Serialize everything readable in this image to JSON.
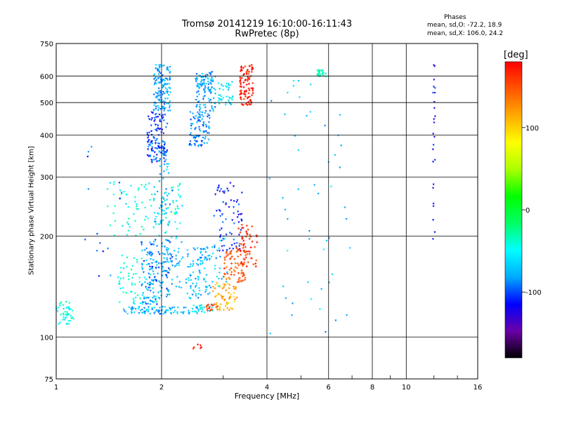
{
  "chart_data": {
    "type": "scatter",
    "title": "Tromsø 20141219 16:10:00-16:11:43",
    "subtitle": "RwPretec (8p)",
    "xlabel": "Frequency [MHz]",
    "ylabel": "Stationary phase Virtual Height [km]",
    "x_scale": "log",
    "y_scale": "log",
    "xlim": [
      1,
      16
    ],
    "ylim": [
      75,
      750
    ],
    "x_ticks": [
      "1",
      "2",
      "4",
      "6",
      "8",
      "10",
      "16"
    ],
    "x_tick_values": [
      1,
      2,
      4,
      6,
      8,
      10,
      16
    ],
    "y_ticks": [
      "750",
      "600",
      "500",
      "400",
      "300",
      "200",
      "100",
      "75"
    ],
    "y_tick_values": [
      750,
      600,
      500,
      400,
      300,
      200,
      100,
      75
    ],
    "grid": true,
    "phases_box": {
      "title": "Phases",
      "o_line": "mean, sd,O: -72.2, 18.9",
      "x_line": "mean, sd,X: 106.0, 24.2"
    },
    "colorbar": {
      "unit": "[deg]",
      "ticks": [
        "100",
        "0",
        "-100"
      ],
      "tick_values": [
        100,
        0,
        -100
      ],
      "range": [
        -180,
        180
      ],
      "colors": [
        "#000000",
        "#6a00a8",
        "#0000ff",
        "#00aaff",
        "#00ffff",
        "#00ff66",
        "#00ff00",
        "#aaff00",
        "#ffff00",
        "#ffaa00",
        "#ff5500",
        "#ff0000"
      ]
    },
    "clusters": [
      {
        "x": [
          1.0,
          1.12
        ],
        "y": [
          108,
          128
        ],
        "phase": -45,
        "n": 45
      },
      {
        "x": [
          1.55,
          2.65
        ],
        "y": [
          117,
          123
        ],
        "phase": -75,
        "n": 90
      },
      {
        "x": [
          2.4,
          2.8
        ],
        "y": [
          118,
          125
        ],
        "phase": -55,
        "n": 25
      },
      {
        "x": [
          1.5,
          1.95
        ],
        "y": [
          125,
          175
        ],
        "phase": -45,
        "n": 70
      },
      {
        "x": [
          1.75,
          2.15
        ],
        "y": [
          125,
          195
        ],
        "phase": -90,
        "n": 150
      },
      {
        "x": [
          2.0,
          2.3
        ],
        "y": [
          140,
          200
        ],
        "phase": -70,
        "n": 40
      },
      {
        "x": [
          2.35,
          2.75
        ],
        "y": [
          130,
          185
        ],
        "phase": -75,
        "n": 90
      },
      {
        "x": [
          1.4,
          2.3
        ],
        "y": [
          200,
          290
        ],
        "phase": -45,
        "n": 100
      },
      {
        "x": [
          1.9,
          2.15
        ],
        "y": [
          215,
          280
        ],
        "phase": -80,
        "n": 35
      },
      {
        "x": [
          1.95,
          2.1
        ],
        "y": [
          290,
          370
        ],
        "phase": -70,
        "n": 20
      },
      {
        "x": [
          1.82,
          2.08
        ],
        "y": [
          330,
          470
        ],
        "phase": -105,
        "n": 120
      },
      {
        "x": [
          1.9,
          2.12
        ],
        "y": [
          470,
          650
        ],
        "phase": -80,
        "n": 130
      },
      {
        "x": [
          2.4,
          2.75
        ],
        "y": [
          370,
          470
        ],
        "phase": -90,
        "n": 90
      },
      {
        "x": [
          2.5,
          2.85
        ],
        "y": [
          460,
          620
        ],
        "phase": -80,
        "n": 110
      },
      {
        "x": [
          2.9,
          3.2
        ],
        "y": [
          490,
          580
        ],
        "phase": -55,
        "n": 40
      },
      {
        "x": [
          2.8,
          3.4
        ],
        "y": [
          180,
          290
        ],
        "phase": -110,
        "n": 70
      },
      {
        "x": [
          2.7,
          3.1
        ],
        "y": [
          140,
          200
        ],
        "phase": -75,
        "n": 30
      },
      {
        "x": [
          2.8,
          3.3
        ],
        "y": [
          120,
          145
        ],
        "phase": 110,
        "n": 60
      },
      {
        "x": [
          3.0,
          3.5
        ],
        "y": [
          145,
          185
        ],
        "phase": 150,
        "n": 70
      },
      {
        "x": [
          3.3,
          3.75
        ],
        "y": [
          160,
          220
        ],
        "phase": 165,
        "n": 55
      },
      {
        "x": [
          3.35,
          3.65
        ],
        "y": [
          490,
          650
        ],
        "phase": 170,
        "n": 90
      },
      {
        "x": [
          2.6,
          2.9
        ],
        "y": [
          120,
          126
        ],
        "phase": 165,
        "n": 15
      },
      {
        "x": [
          5.5,
          5.9
        ],
        "y": [
          595,
          625
        ],
        "phase": -40,
        "n": 25
      },
      {
        "x": [
          11.9,
          12.1
        ],
        "y": [
          190,
          660
        ],
        "phase": -115,
        "n": 25
      },
      {
        "x": [
          4.0,
          7.0
        ],
        "y": [
          100,
          620
        ],
        "phase": -70,
        "n": 50
      },
      {
        "x": [
          1.2,
          1.6
        ],
        "y": [
          150,
          420
        ],
        "phase": -100,
        "n": 15
      },
      {
        "x": [
          2.4,
          2.6
        ],
        "y": [
          92,
          96
        ],
        "phase": 170,
        "n": 6
      }
    ]
  }
}
